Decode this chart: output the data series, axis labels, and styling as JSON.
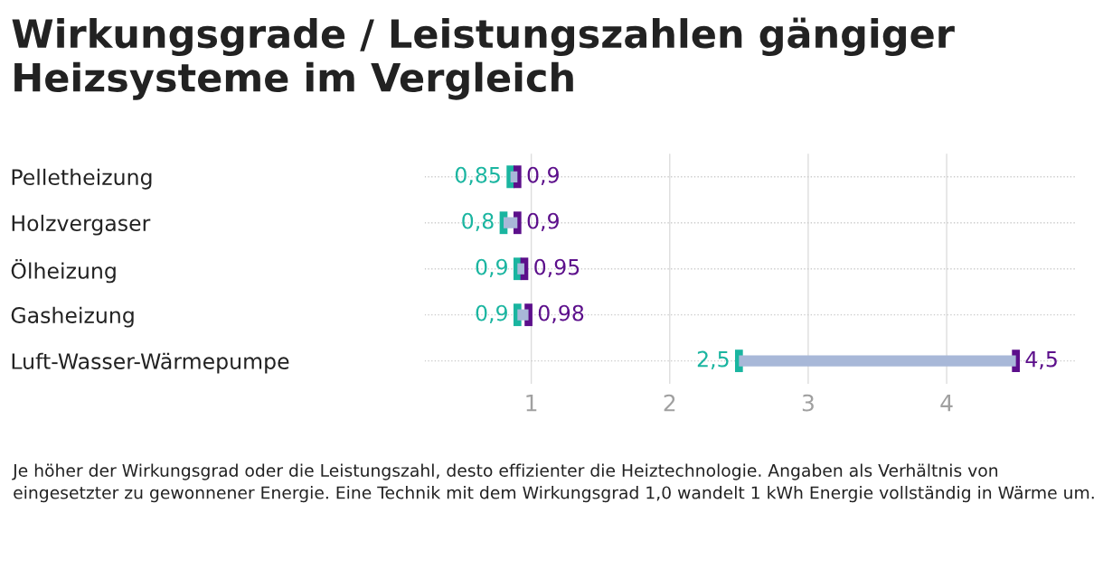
{
  "chart_data": {
    "type": "bar",
    "orientation": "horizontal",
    "title": "Wirkungsgrade / Leistungszahlen gängiger Heizsysteme im Vergleich",
    "categories": [
      "Pelletheizung",
      "Holzvergaser",
      "Ölheizung",
      "Gasheizung",
      "Luft-Wasser-Wärmepumpe"
    ],
    "series": [
      {
        "color": "#a8b8d8",
        "base": [
          0.85,
          0.8,
          0.9,
          0.9,
          2.5
        ],
        "values": [
          0.05,
          0.1,
          0.05,
          0.08,
          2.0
        ]
      },
      {
        "type": "scatter",
        "color": "#1ab5a0",
        "values": [
          0.85,
          0.8,
          0.9,
          0.9,
          2.5
        ],
        "value_labels": [
          "0,85",
          "0,8",
          "0,9",
          "0,9",
          "2,5"
        ]
      },
      {
        "type": "scatter",
        "color": "#5c0f8b",
        "values": [
          0.9,
          0.9,
          0.95,
          0.98,
          4.5
        ],
        "value_labels": [
          "0,9",
          "0,9",
          "0,95",
          "0,98",
          "4,5"
        ]
      }
    ],
    "xlim": [
      0.23,
      4.93
    ],
    "xticks": [
      1,
      2,
      3,
      4
    ],
    "grid": true,
    "annotations": [
      "Je höher der Wirkungsgrad oder die Leistungszahl, desto effizienter die Heiztechnologie. Angaben als Verhältnis von eingesetzter zu gewonnener Energie. Eine Technik mit dem Wirkungsgrad 1,0 wandelt 1 kWh Energie vollständig in Wärme um."
    ]
  }
}
